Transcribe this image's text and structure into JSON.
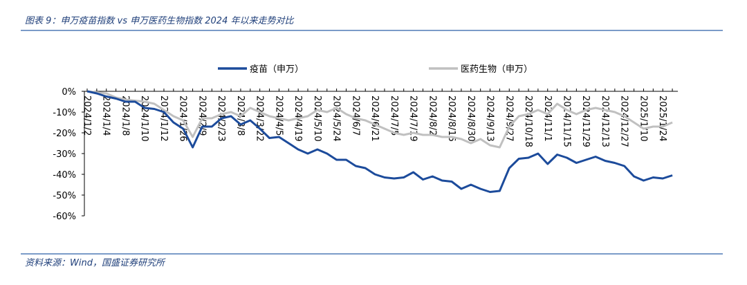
{
  "chart_data": {
    "type": "line",
    "title": "图表 9：申万疫苗指数 vs 申万医药生物指数 2024 年以来走势对比",
    "source": "资料来源：Wind，国盛证券研究所",
    "categories": [
      "2024/1/2",
      null,
      "2024/1/4",
      null,
      "2024/1/8",
      null,
      "2024/1/10",
      null,
      "2024/1/12",
      null,
      "2024/1/26",
      null,
      "2024/2/9",
      null,
      "2024/2/23",
      null,
      "2024/3/8",
      null,
      "2024/3/22",
      null,
      "2024/4/5",
      null,
      "2024/4/19",
      null,
      "2024/5/10",
      null,
      "2024/5/24",
      null,
      "2024/6/7",
      null,
      "2024/6/21",
      null,
      "2024/7/5",
      null,
      "2024/7/19",
      null,
      "2024/8/2",
      null,
      "2024/8/16",
      null,
      "2024/8/30",
      null,
      "2024/9/13",
      null,
      "2024/9/27",
      null,
      "2024/10/18",
      null,
      "2024/11/1",
      null,
      "2024/11/15",
      null,
      "2024/11/29",
      null,
      "2024/12/13",
      null,
      "2024/12/27",
      null,
      "2025/1/10",
      null,
      "2025/1/24",
      null
    ],
    "series": [
      {
        "name": "疫苗（申万）",
        "color": "#1c4b9b",
        "values": [
          0,
          -1,
          -2.5,
          -3.5,
          -5,
          -5,
          -8,
          -8.5,
          -10,
          -15,
          -18,
          -27,
          -17,
          -17,
          -13,
          -12,
          -16,
          -14,
          -18,
          -22.5,
          -22,
          -25,
          -28,
          -30,
          -28,
          -30,
          -33,
          -33,
          -36,
          -37,
          -40,
          -41.5,
          -42,
          -41.5,
          -39,
          -42.5,
          -41,
          -43,
          -43.5,
          -47,
          -45,
          -47,
          -48.5,
          -48,
          -37,
          -32.5,
          -32,
          -30,
          -35,
          -30.5,
          -32,
          -34.5,
          -33,
          -31.5,
          -33.5,
          -34.5,
          -36,
          -41,
          -43,
          -41.5,
          -42,
          -40.5
        ]
      },
      {
        "name": "医药生物（申万）",
        "color": "#c0c0c0",
        "values": [
          0,
          -0.5,
          -1,
          -3,
          -4,
          -4.5,
          -5,
          -6,
          -9,
          -12,
          -14,
          -22,
          -13,
          -13,
          -11,
          -10,
          -12,
          -8,
          -10,
          -12,
          -13,
          -14,
          -13,
          -12,
          -9,
          -10,
          -8,
          -11,
          -13,
          -14,
          -16,
          -18,
          -20,
          -21,
          -20,
          -21,
          -21,
          -22,
          -22,
          -23,
          -25,
          -23,
          -26,
          -27,
          -17,
          -12,
          -11,
          -9,
          -11,
          -6,
          -9,
          -11,
          -9,
          -8,
          -9,
          -10,
          -12,
          -15,
          -18,
          -17,
          -17,
          -15
        ]
      }
    ],
    "ylim": [
      -60,
      0
    ],
    "yticks": [
      {
        "value": 0,
        "label": "0%"
      },
      {
        "value": -10,
        "label": "-10%"
      },
      {
        "value": -20,
        "label": "-20%"
      },
      {
        "value": -30,
        "label": "-30%"
      },
      {
        "value": -40,
        "label": "-40%"
      },
      {
        "value": -50,
        "label": "-50%"
      },
      {
        "value": -60,
        "label": "-60%"
      }
    ]
  }
}
